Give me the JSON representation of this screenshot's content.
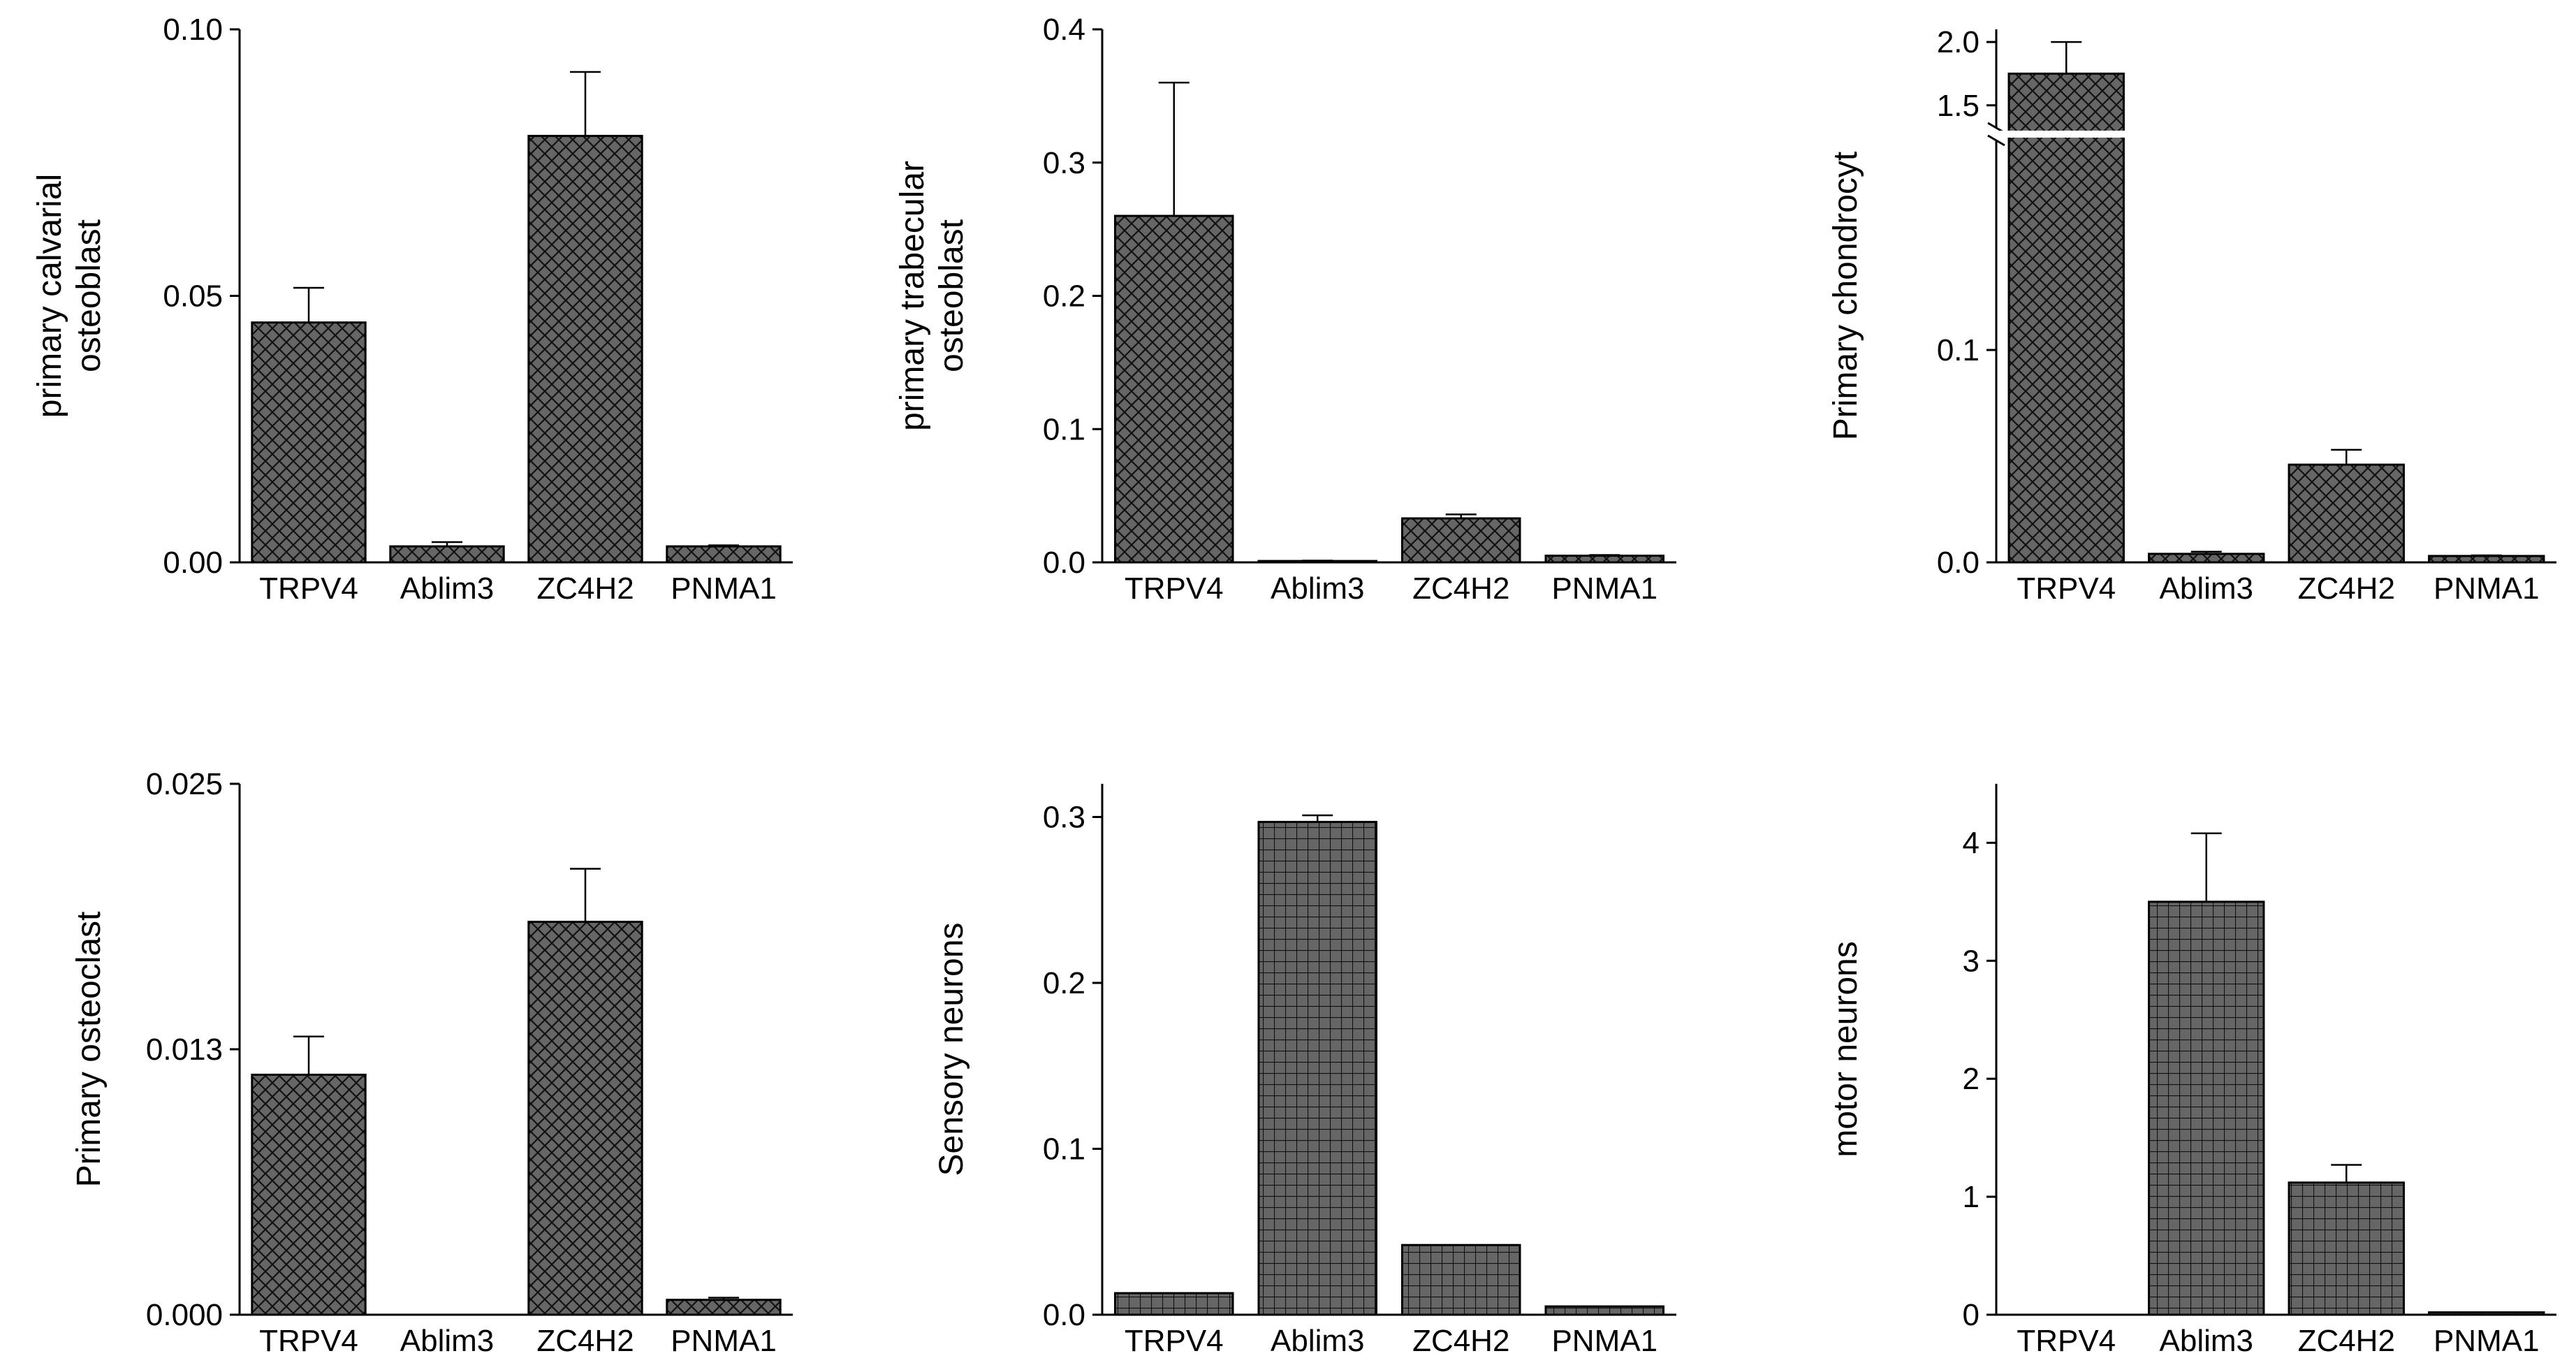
{
  "colors": {
    "bar_fill": "#666666",
    "hatch_line": "#111111",
    "axis": "#000000",
    "background": "#ffffff"
  },
  "chart_data": [
    {
      "type": "bar",
      "panel": "top-left",
      "hatch": "crosshatch",
      "ylabel": [
        "primary calvarial",
        "osteoblast"
      ],
      "categories": [
        "TRPV4",
        "Ablim3",
        "ZC4H2",
        "PNMA1"
      ],
      "values": [
        0.045,
        0.003,
        0.08,
        0.003
      ],
      "errors": [
        0.0065,
        0.0008,
        0.012,
        0.0002
      ],
      "ylim": [
        0,
        0.1
      ],
      "yticks": [
        0,
        0.05,
        0.1
      ],
      "ytick_labels": [
        "0.00",
        "0.05",
        "0.10"
      ]
    },
    {
      "type": "bar",
      "panel": "top-middle",
      "hatch": "crosshatch",
      "ylabel": [
        "primary trabecular",
        "osteoblast"
      ],
      "categories": [
        "TRPV4",
        "Ablim3",
        "ZC4H2",
        "PNMA1"
      ],
      "values": [
        0.26,
        0.001,
        0.033,
        0.005
      ],
      "errors": [
        0.1,
        0.0003,
        0.003,
        0.0005
      ],
      "ylim": [
        0,
        0.4
      ],
      "yticks": [
        0,
        0.1,
        0.2,
        0.3,
        0.4
      ],
      "ytick_labels": [
        "0.0",
        "0.1",
        "0.2",
        "0.3",
        "0.4"
      ]
    },
    {
      "type": "bar",
      "panel": "top-right",
      "hatch": "crosshatch",
      "axis_break": true,
      "ylabel": [
        "Primary chondrocyt"
      ],
      "categories": [
        "TRPV4",
        "Ablim3",
        "ZC4H2",
        "PNMA1"
      ],
      "values": [
        1.75,
        0.004,
        0.046,
        0.003
      ],
      "errors": [
        0.25,
        0.001,
        0.007,
        0.0003
      ],
      "ylim_lower": [
        0,
        0.2
      ],
      "ylim_upper": [
        1.3,
        2.1
      ],
      "yticks": [
        0,
        0.1,
        1.5,
        2.0
      ],
      "ytick_labels": [
        "0.0",
        "0.1",
        "1.5",
        "2.0"
      ]
    },
    {
      "type": "bar",
      "panel": "bottom-left",
      "hatch": "crosshatch",
      "ylabel": [
        "Primary osteoclast"
      ],
      "categories": [
        "TRPV4",
        "Ablim3",
        "ZC4H2",
        "PNMA1"
      ],
      "values": [
        0.0113,
        0.0,
        0.0185,
        0.0007
      ],
      "errors": [
        0.0018,
        0.0,
        0.0025,
        0.0001
      ],
      "ylim": [
        0,
        0.025
      ],
      "yticks": [
        0,
        0.0125,
        0.025
      ],
      "ytick_labels": [
        "0.000",
        "0.013",
        "0.025"
      ]
    },
    {
      "type": "bar",
      "panel": "bottom-middle",
      "hatch": "grid",
      "ylabel": [
        "Sensory neurons"
      ],
      "categories": [
        "TRPV4",
        "Ablim3",
        "ZC4H2",
        "PNMA1"
      ],
      "values": [
        0.013,
        0.297,
        0.042,
        0.005
      ],
      "errors": [
        0.0,
        0.004,
        0.0,
        0.0
      ],
      "ylim": [
        0,
        0.32
      ],
      "yticks": [
        0,
        0.1,
        0.2,
        0.3
      ],
      "ytick_labels": [
        "0.0",
        "0.1",
        "0.2",
        "0.3"
      ]
    },
    {
      "type": "bar",
      "panel": "bottom-right",
      "hatch": "grid",
      "ylabel": [
        "motor neurons"
      ],
      "categories": [
        "TRPV4",
        "Ablim3",
        "ZC4H2",
        "PNMA1"
      ],
      "values": [
        0.0,
        3.5,
        1.12,
        0.02
      ],
      "errors": [
        0.0,
        0.58,
        0.15,
        0.0
      ],
      "ylim": [
        0,
        4.5
      ],
      "yticks": [
        0,
        1,
        2,
        3,
        4
      ],
      "ytick_labels": [
        "0",
        "1",
        "2",
        "3",
        "4"
      ]
    }
  ]
}
